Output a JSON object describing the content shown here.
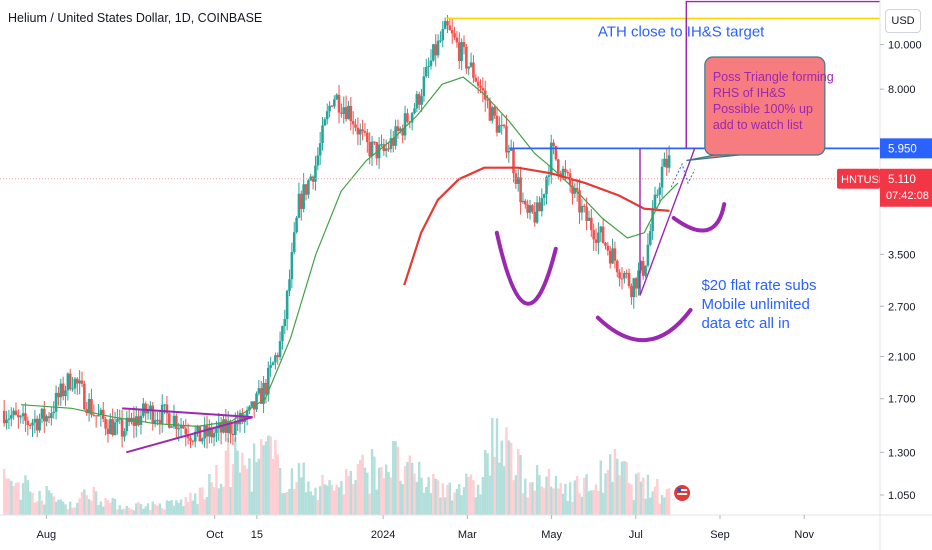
{
  "header": {
    "title": "Helium / United States Dollar, 1D, COINBASE",
    "currency": "USD"
  },
  "colors": {
    "up": "#26a69a",
    "down": "#ef5350",
    "ma_short": "#43a047",
    "ma_long": "#e53935",
    "annotation": "#9c27b0",
    "ath_line": "#ffd600",
    "level_line": "#2962ff",
    "callout_fill": "#f77c80",
    "callout_text": "#9c27b0",
    "note_text": "#2962ff",
    "price_line": "#ef9a9a"
  },
  "chart_data": {
    "type": "candlestick",
    "symbol": "HNTUSD",
    "scale": "log",
    "ylim": [
      0.95,
      12.5
    ],
    "y_ticks": [
      "10.000",
      "8.000",
      "3.500",
      "2.700",
      "2.100",
      "1.700",
      "1.300",
      "1.050"
    ],
    "y_tick_values": [
      10.0,
      8.0,
      3.5,
      2.7,
      2.1,
      1.7,
      1.3,
      1.05
    ],
    "x_ticks": [
      "Aug",
      "Oct",
      "15",
      "2024",
      "Mar",
      "May",
      "Jul",
      "Sep",
      "Nov"
    ],
    "x_tick_values": [
      0,
      2,
      2.5,
      4,
      5,
      6,
      7,
      8,
      9
    ],
    "x_range": [
      -0.55,
      9.9
    ],
    "current_price": {
      "label": "HNTUSD",
      "value": "5.110",
      "countdown": "07:42:08",
      "numeric": 5.11
    },
    "level_price": {
      "value": "5.950",
      "numeric": 5.95
    },
    "ath_level": 11.4,
    "series_close": [
      [
        -0.5,
        1.6
      ],
      [
        -0.3,
        1.5
      ],
      [
        0.0,
        1.55
      ],
      [
        0.3,
        1.9
      ],
      [
        0.6,
        1.55
      ],
      [
        0.9,
        1.45
      ],
      [
        1.2,
        1.6
      ],
      [
        1.5,
        1.55
      ],
      [
        1.8,
        1.4
      ],
      [
        2.1,
        1.45
      ],
      [
        2.4,
        1.55
      ],
      [
        2.6,
        1.8
      ],
      [
        2.8,
        2.3
      ],
      [
        3.0,
        4.5
      ],
      [
        3.2,
        5.5
      ],
      [
        3.4,
        7.8
      ],
      [
        3.6,
        7.2
      ],
      [
        3.8,
        6.0
      ],
      [
        4.0,
        5.8
      ],
      [
        4.2,
        6.5
      ],
      [
        4.4,
        7.5
      ],
      [
        4.6,
        9.5
      ],
      [
        4.75,
        10.8
      ],
      [
        4.9,
        9.8
      ],
      [
        5.1,
        8.5
      ],
      [
        5.3,
        7.0
      ],
      [
        5.5,
        6.0
      ],
      [
        5.7,
        4.2
      ],
      [
        5.85,
        4.3
      ],
      [
        6.0,
        5.9
      ],
      [
        6.2,
        5.0
      ],
      [
        6.4,
        4.2
      ],
      [
        6.6,
        3.8
      ],
      [
        6.8,
        3.3
      ],
      [
        6.95,
        3.0
      ],
      [
        7.1,
        3.3
      ],
      [
        7.2,
        4.2
      ],
      [
        7.3,
        5.3
      ],
      [
        7.4,
        5.6
      ]
    ],
    "series": [
      {
        "name": "",
        "kind": "moving-average-short",
        "points": [
          [
            -0.3,
            1.65
          ],
          [
            0.3,
            1.62
          ],
          [
            0.8,
            1.55
          ],
          [
            1.3,
            1.5
          ],
          [
            1.8,
            1.48
          ],
          [
            2.2,
            1.52
          ],
          [
            2.6,
            1.7
          ],
          [
            2.9,
            2.3
          ],
          [
            3.2,
            3.5
          ],
          [
            3.5,
            4.8
          ],
          [
            3.8,
            5.6
          ],
          [
            4.1,
            6.2
          ],
          [
            4.4,
            7.0
          ],
          [
            4.7,
            8.2
          ],
          [
            4.95,
            8.5
          ],
          [
            5.2,
            7.8
          ],
          [
            5.5,
            6.8
          ],
          [
            5.8,
            5.8
          ],
          [
            6.0,
            5.4
          ],
          [
            6.3,
            4.8
          ],
          [
            6.6,
            4.2
          ],
          [
            6.9,
            3.8
          ],
          [
            7.1,
            3.9
          ],
          [
            7.3,
            4.6
          ],
          [
            7.5,
            5.0
          ]
        ]
      },
      {
        "name": "",
        "kind": "moving-average-long",
        "points": [
          [
            4.25,
            3.0
          ],
          [
            4.45,
            3.9
          ],
          [
            4.65,
            4.6
          ],
          [
            4.9,
            5.1
          ],
          [
            5.2,
            5.4
          ],
          [
            5.6,
            5.4
          ],
          [
            6.0,
            5.25
          ],
          [
            6.4,
            5.0
          ],
          [
            6.8,
            4.7
          ],
          [
            7.1,
            4.4
          ],
          [
            7.4,
            4.35
          ]
        ]
      }
    ],
    "volume_heights": [
      0.35,
      0.3,
      0.22,
      0.15,
      0.1,
      0.25,
      0.12,
      0.08,
      0.1,
      0.09,
      0.12,
      0.18,
      0.3,
      0.55,
      0.45,
      0.6,
      0.4,
      0.35,
      0.28,
      0.3,
      0.38,
      0.45,
      0.55,
      0.4,
      0.32,
      0.28,
      0.3,
      0.25,
      0.75,
      0.5,
      0.35,
      0.3,
      0.28,
      0.26,
      0.35,
      0.45,
      0.3,
      0.25,
      0.2
    ],
    "annotations": {
      "ath": "ATH close to IH&S target",
      "callout": [
        "Poss Triangle forming",
        "RHS of IH&S",
        "Possible 100% up",
        "add to watch list"
      ],
      "note": [
        "$20 flat rate subs",
        "Mobile unlimited",
        "data etc all in"
      ]
    }
  }
}
